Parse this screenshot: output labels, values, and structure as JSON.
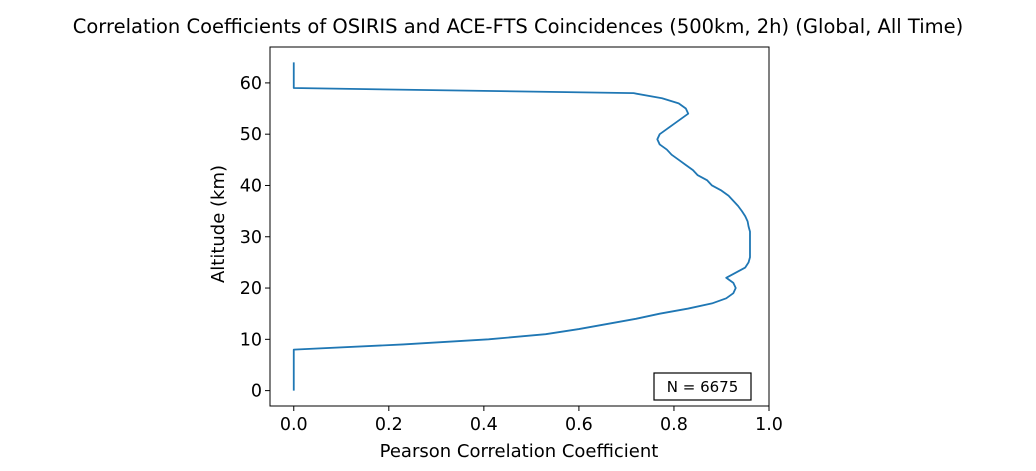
{
  "chart_data": {
    "type": "line",
    "title": "Correlation Coefficients of OSIRIS and ACE-FTS Coincidences (500km, 2h) (Global, All Time)",
    "xlabel": "Pearson Correlation Coefficient",
    "ylabel": "Altitude (km)",
    "xlim": [
      -0.05,
      1.0
    ],
    "ylim": [
      -3,
      67
    ],
    "xticks": [
      0.0,
      0.2,
      0.4,
      0.6,
      0.8,
      1.0
    ],
    "xtick_labels": [
      "0.0",
      "0.2",
      "0.4",
      "0.6",
      "0.8",
      "1.0"
    ],
    "yticks": [
      0,
      10,
      20,
      30,
      40,
      50,
      60
    ],
    "ytick_labels": [
      "0",
      "10",
      "20",
      "30",
      "40",
      "50",
      "60"
    ],
    "grid": false,
    "annotation": "N = 6675",
    "annotation_position": "bottom-right",
    "series": [
      {
        "color": "#1f77b4",
        "x": [
          0.0,
          0.0,
          0.0,
          0.0,
          0.0,
          0.0,
          0.0,
          0.0,
          0.0,
          0.23,
          0.41,
          0.53,
          0.6,
          0.66,
          0.72,
          0.77,
          0.83,
          0.88,
          0.91,
          0.925,
          0.93,
          0.925,
          0.91,
          0.93,
          0.95,
          0.957,
          0.96,
          0.96,
          0.96,
          0.96,
          0.96,
          0.96,
          0.957,
          0.955,
          0.95,
          0.943,
          0.935,
          0.925,
          0.915,
          0.9,
          0.88,
          0.87,
          0.85,
          0.84,
          0.825,
          0.81,
          0.795,
          0.785,
          0.77,
          0.765,
          0.77,
          0.785,
          0.8,
          0.815,
          0.83,
          0.825,
          0.81,
          0.775,
          0.715,
          0.0,
          0.0,
          0.0,
          0.0,
          0.0,
          0.0
        ],
        "y": [
          0,
          1,
          2,
          3,
          4,
          5,
          6,
          7,
          8,
          9,
          10,
          11,
          12,
          13,
          14,
          15,
          16,
          17,
          18,
          19,
          20,
          21,
          22,
          23,
          24,
          25,
          26,
          27,
          28,
          29,
          30,
          31,
          32,
          33,
          34,
          35,
          36,
          37,
          38,
          39,
          40,
          41,
          42,
          43,
          44,
          45,
          46,
          47,
          48,
          49,
          50,
          51,
          52,
          53,
          54,
          55,
          56,
          57,
          58,
          59,
          60,
          61,
          62,
          63,
          64
        ]
      }
    ]
  }
}
